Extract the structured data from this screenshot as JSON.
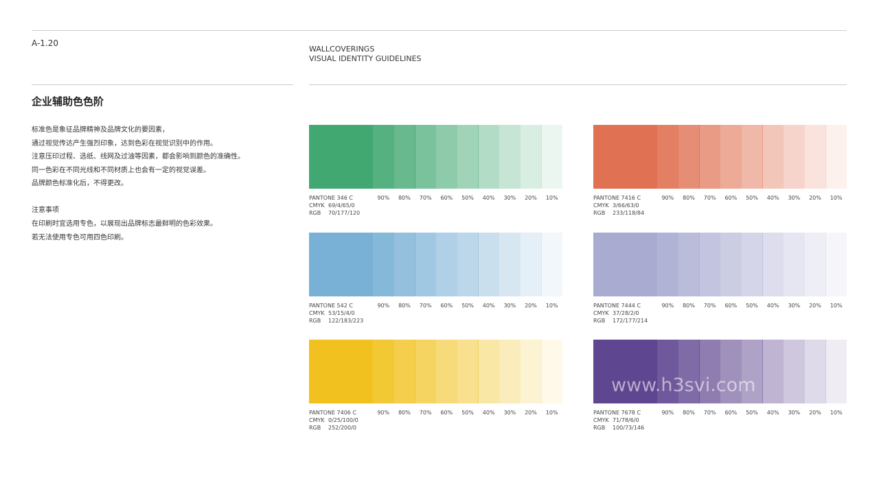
{
  "header": {
    "code": "A-1.20",
    "brand": "WALLCOVERINGS",
    "subtitle": "VISUAL IDENTITY GUIDELINES"
  },
  "section": {
    "title": "企业辅助色色阶",
    "paragraph1": [
      "标准色是象征品牌精神及品牌文化的要因素，",
      "通过视觉传达产生强烈印象，达到色彩在视觉识别中的作用。",
      "注意压印过程、选纸、线网及过油等因素，都会影响到颜色的准确性。",
      "同一色彩在不同光线和不同材质上也会有一定的视觉误差。",
      "品牌颜色标准化后，不得更改。"
    ],
    "note_title": "注意事项",
    "paragraph2": [
      "在印刷时宜选用专色，以展现出品牌标志最鲜明的色彩效果。",
      "若无法使用专色可用四色印刷。"
    ]
  },
  "swatches": {
    "cmyk_label": "CMYK",
    "rgb_label": "RGB",
    "tints": [
      "90%",
      "80%",
      "70%",
      "60%",
      "50%",
      "40%",
      "30%",
      "20%",
      "10%"
    ],
    "palettes": [
      {
        "pantone": "PANTONE 346 C",
        "cmyk": "69/4/65/0",
        "rgb": "70/177/120",
        "color": "#42a872"
      },
      {
        "pantone": "PANTONE 7416 C",
        "cmyk": "3/66/63/0",
        "rgb": "233/118/84",
        "color": "#e07152"
      },
      {
        "pantone": "PANTONE 542 C",
        "cmyk": "53/15/4/0",
        "rgb": "122/183/223",
        "color": "#79b0d5"
      },
      {
        "pantone": "PANTONE 7444 C",
        "cmyk": "37/28/2/0",
        "rgb": "172/177/214",
        "color": "#a9abd1"
      },
      {
        "pantone": "PANTONE 7406 C",
        "cmyk": "0/25/100/0",
        "rgb": "252/200/0",
        "color": "#f1c21f"
      },
      {
        "pantone": "PANTONE 7678 C",
        "cmyk": "71/78/6/0",
        "rgb": "100/73/146",
        "color": "#5f4690"
      }
    ]
  },
  "watermark": "www.h3svi.com"
}
